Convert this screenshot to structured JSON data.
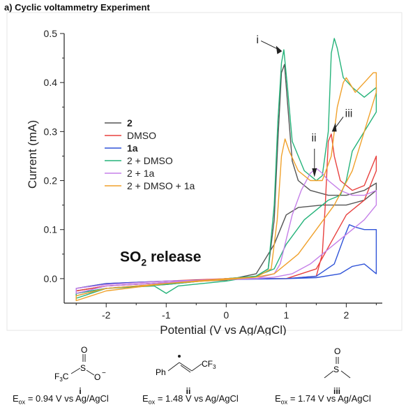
{
  "panel_title": "a) Cyclic voltammetry Experiment",
  "chart_data": {
    "type": "line",
    "title": "",
    "xlabel": "Potential (V vs Ag/AgCl)",
    "ylabel": "Current (mA)",
    "xlim": [
      -2.7,
      2.6
    ],
    "ylim": [
      -0.05,
      0.5
    ],
    "xticks": [
      -2,
      -1,
      0,
      1,
      2
    ],
    "yticks": [
      0.0,
      0.1,
      0.2,
      0.3,
      0.4,
      0.5
    ],
    "legend_position": "left-middle",
    "grid": false,
    "series": [
      {
        "name": "2",
        "color": "#555555",
        "x": [
          0.0,
          0.5,
          0.7,
          0.8,
          0.86,
          0.92,
          0.97,
          1.02,
          1.1,
          1.2,
          1.4,
          1.7,
          2.0,
          2.3,
          2.5,
          2.5,
          2.3,
          2.0,
          1.6,
          1.2,
          1.0,
          0.8,
          0.5,
          0.0,
          -1.0,
          -2.0,
          -2.5,
          -2.5,
          -2.0,
          -1.0,
          0.0
        ],
        "y": [
          0.0,
          0.005,
          0.02,
          0.12,
          0.28,
          0.42,
          0.437,
          0.36,
          0.24,
          0.2,
          0.18,
          0.17,
          0.17,
          0.18,
          0.195,
          0.18,
          0.16,
          0.15,
          0.15,
          0.145,
          0.13,
          0.07,
          0.01,
          -0.003,
          -0.008,
          -0.015,
          -0.025,
          -0.035,
          -0.02,
          -0.012,
          0.0
        ]
      },
      {
        "name": "DMSO",
        "color": "#e8413f",
        "x": [
          0.0,
          1.0,
          1.5,
          1.6,
          1.65,
          1.7,
          1.75,
          1.8,
          1.9,
          2.1,
          2.3,
          2.5,
          2.5,
          2.3,
          2.0,
          1.5,
          1.0,
          0.0,
          -1.0,
          -2.0,
          -2.5,
          -2.5,
          -2.0,
          -1.0,
          0.0
        ],
        "y": [
          0.0,
          0.0,
          0.005,
          0.05,
          0.15,
          0.28,
          0.295,
          0.25,
          0.2,
          0.18,
          0.19,
          0.25,
          0.22,
          0.16,
          0.13,
          0.02,
          0.0,
          0.0,
          -0.005,
          -0.01,
          -0.02,
          -0.025,
          -0.015,
          -0.008,
          0.0
        ]
      },
      {
        "name": "1a",
        "color": "#3054d8",
        "x": [
          0.0,
          1.0,
          1.5,
          1.8,
          1.95,
          2.05,
          2.15,
          2.3,
          2.5,
          2.5,
          2.3,
          2.1,
          1.9,
          1.5,
          1.0,
          0.0,
          -1.0,
          -2.0,
          -2.5,
          -2.5,
          -2.0,
          -1.0,
          0.0
        ],
        "y": [
          0.0,
          0.0,
          0.005,
          0.03,
          0.08,
          0.11,
          0.105,
          0.1,
          0.1,
          0.01,
          0.03,
          0.025,
          0.01,
          0.002,
          0.0,
          -0.002,
          -0.005,
          -0.01,
          -0.02,
          -0.03,
          -0.02,
          -0.01,
          0.0
        ]
      },
      {
        "name": "2 + DMSO",
        "color": "#25b37a",
        "x": [
          0.0,
          0.5,
          0.7,
          0.8,
          0.86,
          0.92,
          0.96,
          1.02,
          1.1,
          1.3,
          1.5,
          1.6,
          1.7,
          1.75,
          1.8,
          1.85,
          1.95,
          2.1,
          2.3,
          2.5,
          2.5,
          2.3,
          2.1,
          2.0,
          1.9,
          1.7,
          1.3,
          1.0,
          0.8,
          0.5,
          0.0,
          -0.8,
          -1.0,
          -1.2,
          -2.0,
          -2.5,
          -2.5,
          -2.0,
          -1.0,
          0.0
        ],
        "y": [
          0.0,
          0.005,
          0.02,
          0.15,
          0.32,
          0.44,
          0.467,
          0.39,
          0.28,
          0.22,
          0.2,
          0.21,
          0.3,
          0.46,
          0.49,
          0.47,
          0.41,
          0.39,
          0.37,
          0.39,
          0.34,
          0.3,
          0.26,
          0.2,
          0.17,
          0.16,
          0.12,
          0.07,
          0.02,
          0.005,
          -0.005,
          -0.015,
          -0.03,
          -0.015,
          -0.02,
          -0.03,
          -0.04,
          -0.02,
          -0.012,
          0.0
        ]
      },
      {
        "name": "2 + 1a",
        "color": "#c580e8",
        "x": [
          0.0,
          0.5,
          0.8,
          0.9,
          1.0,
          1.1,
          1.25,
          1.4,
          1.5,
          1.6,
          1.7,
          1.9,
          2.1,
          2.3,
          2.5,
          2.5,
          2.3,
          2.0,
          1.7,
          1.4,
          1.1,
          0.8,
          0.5,
          0.0,
          -1.0,
          -2.0,
          -2.5,
          -2.5,
          -2.0,
          -1.0,
          0.0
        ],
        "y": [
          0.0,
          0.0,
          0.01,
          0.03,
          0.08,
          0.13,
          0.18,
          0.215,
          0.225,
          0.215,
          0.2,
          0.18,
          0.17,
          0.17,
          0.18,
          0.15,
          0.12,
          0.09,
          0.06,
          0.03,
          0.01,
          0.003,
          0.0,
          -0.002,
          -0.005,
          -0.012,
          -0.02,
          -0.03,
          -0.015,
          -0.008,
          0.0
        ]
      },
      {
        "name": "2 + DMSO + 1a",
        "color": "#f0a12b",
        "x": [
          0.0,
          0.5,
          0.75,
          0.85,
          0.92,
          0.98,
          1.05,
          1.2,
          1.4,
          1.6,
          1.75,
          1.85,
          1.95,
          2.0,
          2.05,
          2.15,
          2.3,
          2.45,
          2.5,
          2.5,
          2.3,
          2.1,
          1.8,
          1.5,
          1.2,
          1.0,
          0.8,
          0.5,
          0.0,
          -1.0,
          -2.0,
          -2.5,
          -2.5,
          -2.0,
          -1.0,
          0.0
        ],
        "y": [
          0.0,
          0.003,
          0.02,
          0.12,
          0.25,
          0.285,
          0.26,
          0.22,
          0.2,
          0.2,
          0.25,
          0.35,
          0.4,
          0.41,
          0.4,
          0.38,
          0.4,
          0.42,
          0.42,
          0.38,
          0.3,
          0.22,
          0.15,
          0.1,
          0.05,
          0.03,
          0.01,
          0.003,
          -0.002,
          -0.01,
          -0.02,
          -0.035,
          -0.045,
          -0.025,
          -0.01,
          0.0
        ]
      }
    ],
    "legend": [
      {
        "label": "2",
        "bold": true
      },
      {
        "label": "DMSO",
        "bold": false
      },
      {
        "label": "1a",
        "bold": true
      },
      {
        "label": "2 + DMSO",
        "bold": false
      },
      {
        "label": "2 + 1a",
        "bold": false
      },
      {
        "label": "2 + DMSO + 1a",
        "bold": false
      }
    ],
    "annotations": {
      "i": {
        "label": "i",
        "x": 0.94,
        "y": 0.46
      },
      "ii": {
        "label": "ii",
        "x": 1.48,
        "y": 0.2
      },
      "iii": {
        "label": "iii",
        "x": 1.74,
        "y": 0.3
      },
      "so2": {
        "label": "SO",
        "sub": "2",
        "suffix": " release"
      }
    }
  },
  "structures": [
    {
      "roman": "i",
      "formula_html": "F<sub>3</sub>C–S(=O)(=O)–O<sup>−</sup>",
      "eox": "= 0.94 V vs Ag/AgCl"
    },
    {
      "roman": "ii",
      "formula_html": "Ph–C•=CH–CF<sub>3</sub>",
      "eox": "= 1.48 V vs Ag/AgCl"
    },
    {
      "roman": "iii",
      "formula_html": "CH<sub>3</sub>–S(=O)–CH<sub>3</sub>",
      "eox": "= 1.74 V vs Ag/AgCl"
    }
  ],
  "eox_prefix": "E",
  "eox_sub": "ox"
}
